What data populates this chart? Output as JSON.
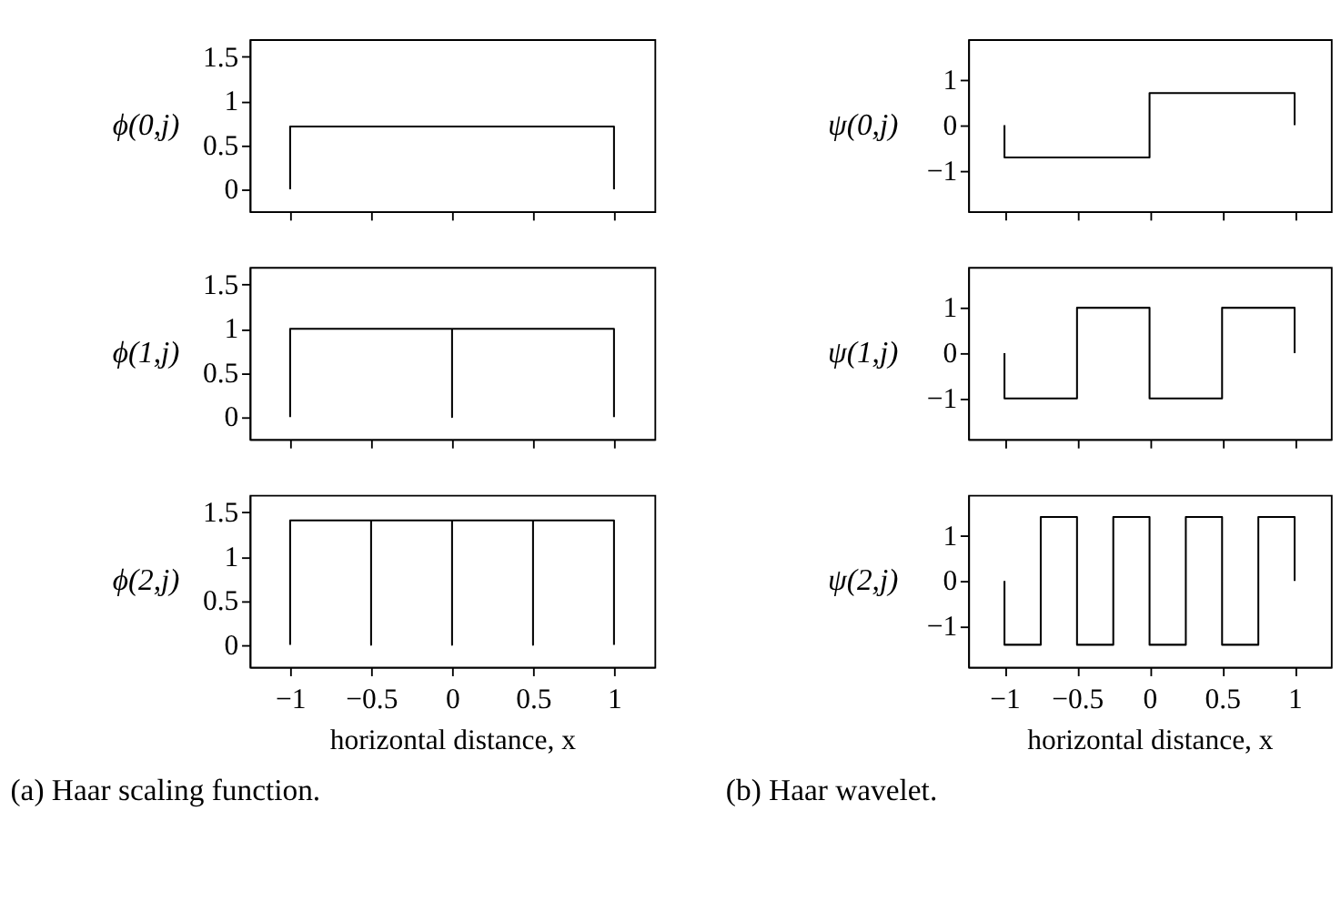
{
  "chart_data": [
    {
      "type": "line",
      "ylabel": "ϕ(0,j)",
      "x": [
        -1,
        -1,
        1,
        1
      ],
      "values": [
        0,
        0.71,
        0.71,
        0
      ],
      "color": "#000000",
      "xlim": [
        -1.25,
        1.25
      ],
      "ylim": [
        -0.25,
        1.7
      ],
      "xticks": [
        -1,
        -0.5,
        0,
        0.5,
        1
      ],
      "yticks": [
        0,
        0.5,
        1,
        1.5
      ],
      "tick_labels": "y"
    },
    {
      "type": "line",
      "ylabel": "ϕ(1,j)",
      "x": [
        -1,
        -1,
        0,
        0,
        0,
        1,
        1
      ],
      "values": [
        0,
        1,
        1,
        0,
        1,
        1,
        0
      ],
      "color": "#000000",
      "xlim": [
        -1.25,
        1.25
      ],
      "ylim": [
        -0.25,
        1.7
      ],
      "xticks": [
        -1,
        -0.5,
        0,
        0.5,
        1
      ],
      "yticks": [
        0,
        0.5,
        1,
        1.5
      ],
      "tick_labels": "y"
    },
    {
      "type": "line",
      "ylabel": "ϕ(2,j)",
      "xlabel": "horizontal distance, x",
      "annotations": [
        "(a) Haar scaling function."
      ],
      "x": [
        -1,
        -1,
        -0.5,
        -0.5,
        -0.5,
        0,
        0,
        0,
        0.5,
        0.5,
        0.5,
        1,
        1
      ],
      "values": [
        0,
        1.41,
        1.41,
        0,
        1.41,
        1.41,
        0,
        1.41,
        1.41,
        0,
        1.41,
        1.41,
        0
      ],
      "color": "#000000",
      "xlim": [
        -1.25,
        1.25
      ],
      "ylim": [
        -0.25,
        1.7
      ],
      "xticks": [
        -1,
        -0.5,
        0,
        0.5,
        1
      ],
      "yticks": [
        0,
        0.5,
        1,
        1.5
      ]
    },
    {
      "type": "line",
      "ylabel": "ψ(0,j)",
      "x": [
        -1,
        -1,
        0,
        0,
        1,
        1
      ],
      "values": [
        0,
        -0.71,
        -0.71,
        0.71,
        0.71,
        0
      ],
      "color": "#000000",
      "xlim": [
        -1.25,
        1.25
      ],
      "ylim": [
        -1.9,
        1.9
      ],
      "xticks": [
        -1,
        -0.5,
        0,
        0.5,
        1
      ],
      "yticks": [
        -1,
        0,
        1
      ],
      "tick_labels": "y"
    },
    {
      "type": "line",
      "ylabel": "ψ(1,j)",
      "x": [
        -1,
        -1,
        -0.5,
        -0.5,
        0,
        0,
        0.5,
        0.5,
        1,
        1
      ],
      "values": [
        0,
        -1,
        -1,
        1,
        1,
        -1,
        -1,
        1,
        1,
        0
      ],
      "color": "#000000",
      "xlim": [
        -1.25,
        1.25
      ],
      "ylim": [
        -1.9,
        1.9
      ],
      "xticks": [
        -1,
        -0.5,
        0,
        0.5,
        1
      ],
      "yticks": [
        -1,
        0,
        1
      ],
      "tick_labels": "y"
    },
    {
      "type": "line",
      "ylabel": "ψ(2,j)",
      "xlabel": "horizontal distance, x",
      "annotations": [
        "(b) Haar wavelet."
      ],
      "x": [
        -1,
        -1,
        -0.75,
        -0.75,
        -0.5,
        -0.5,
        -0.25,
        -0.25,
        0,
        0,
        0.25,
        0.25,
        0.5,
        0.5,
        0.75,
        0.75,
        1,
        1
      ],
      "values": [
        0,
        -1.41,
        -1.41,
        1.41,
        1.41,
        -1.41,
        -1.41,
        1.41,
        1.41,
        -1.41,
        -1.41,
        1.41,
        1.41,
        -1.41,
        -1.41,
        1.41,
        1.41,
        0
      ],
      "color": "#000000",
      "xlim": [
        -1.25,
        1.25
      ],
      "ylim": [
        -1.9,
        1.9
      ],
      "xticks": [
        -1,
        -0.5,
        0,
        0.5,
        1
      ],
      "yticks": [
        -1,
        0,
        1
      ]
    }
  ]
}
